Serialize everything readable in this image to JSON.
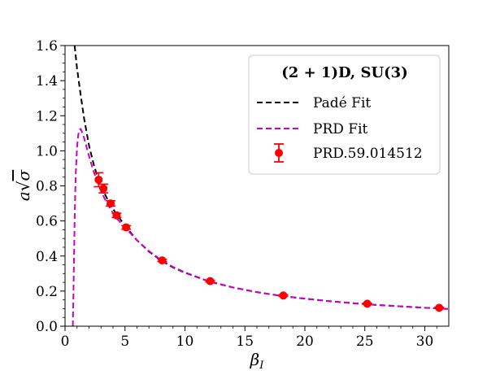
{
  "chart_data": {
    "type": "line",
    "xlabel": "β_I",
    "ylabel": "a√σ",
    "xlim": [
      0,
      32
    ],
    "ylim": [
      0.0,
      1.6
    ],
    "x_ticks": [
      0,
      5,
      10,
      15,
      20,
      25,
      30
    ],
    "y_ticks": [
      0.0,
      0.2,
      0.4,
      0.6,
      0.8,
      1.0,
      1.2,
      1.4,
      1.6
    ],
    "x_tick_labels": [
      "0",
      "5",
      "10",
      "15",
      "20",
      "25",
      "30"
    ],
    "y_tick_labels": [
      "0.0",
      "0.2",
      "0.4",
      "0.6",
      "0.8",
      "1.0",
      "1.2",
      "1.4",
      "1.6"
    ],
    "legend": {
      "title": "(2 + 1)D, SU(3)",
      "placement": "upper right",
      "entries": [
        "Padé Fit",
        "PRD Fit",
        "PRD.59.014512"
      ]
    },
    "series": [
      {
        "name": "Padé Fit",
        "style": "dashed",
        "color": "#000000",
        "x": [
          0.8,
          1.0,
          1.3,
          1.6,
          2.0,
          2.4,
          2.8,
          3.2,
          3.6,
          4.0,
          4.5,
          5.0,
          6.0,
          7.0,
          8.0,
          9.0,
          10.0,
          12.0,
          14.0,
          16.0,
          18.0,
          20.0,
          22.0,
          24.0,
          26.0,
          28.0,
          30.0,
          32.0
        ],
        "y": [
          1.6,
          1.47,
          1.32,
          1.18,
          1.03,
          0.92,
          0.83,
          0.77,
          0.715,
          0.668,
          0.62,
          0.573,
          0.49,
          0.425,
          0.375,
          0.335,
          0.305,
          0.255,
          0.221,
          0.194,
          0.173,
          0.157,
          0.143,
          0.131,
          0.121,
          0.113,
          0.105,
          0.098
        ]
      },
      {
        "name": "PRD Fit",
        "style": "dashed",
        "color": "#cc00cc",
        "x": [
          0.65,
          0.7,
          0.75,
          0.8,
          0.85,
          0.9,
          1.0,
          1.1,
          1.2,
          1.3,
          1.4,
          1.6,
          1.8,
          2.0,
          2.3,
          2.6,
          3.0,
          3.5,
          4.0,
          4.5,
          5.0,
          6.0,
          7.0,
          8.0,
          9.0,
          10.0,
          12.0,
          14.0,
          16.0,
          18.0,
          20.0,
          22.0,
          24.0,
          26.0,
          28.0,
          30.0,
          32.0
        ],
        "y": [
          0.0,
          0.18,
          0.4,
          0.6,
          0.76,
          0.88,
          1.02,
          1.09,
          1.12,
          1.125,
          1.11,
          1.07,
          1.02,
          0.97,
          0.9,
          0.84,
          0.77,
          0.7,
          0.645,
          0.6,
          0.563,
          0.49,
          0.428,
          0.378,
          0.338,
          0.307,
          0.256,
          0.221,
          0.194,
          0.173,
          0.157,
          0.143,
          0.131,
          0.121,
          0.113,
          0.105,
          0.098
        ]
      },
      {
        "name": "PRD.59.014512",
        "style": "markers-errorbars",
        "color": "#ff0000",
        "x": [
          2.8,
          3.2,
          3.8,
          4.3,
          5.1,
          8.1,
          12.1,
          18.2,
          25.2,
          31.2
        ],
        "y": [
          0.835,
          0.785,
          0.7,
          0.632,
          0.563,
          0.375,
          0.257,
          0.175,
          0.128,
          0.105
        ],
        "yerr": [
          0.04,
          0.025,
          0.015,
          0.012,
          0.01,
          0.006,
          0.005,
          0.004,
          0.003,
          0.003
        ]
      }
    ]
  }
}
